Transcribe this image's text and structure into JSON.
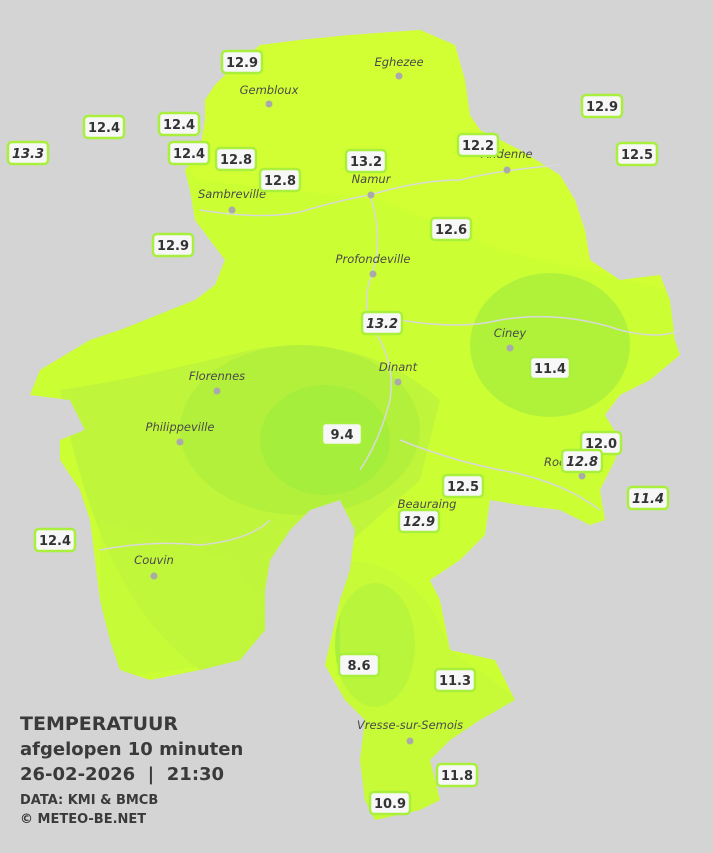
{
  "legend": {
    "title": "TEMPERATUUR",
    "subtitle": "afgelopen 10 minuten",
    "datetime": "26-02-2026  |  21:30",
    "source": "DATA: KMI & BMCB",
    "copyright": "© METEO-BE.NET"
  },
  "cities": [
    "Eghezee",
    "Gembloux",
    "Andenne",
    "Namur",
    "Sambreville",
    "Profondeville",
    "Ciney",
    "Dinant",
    "Florennes",
    "Philippeville",
    "Rochefort",
    "Beauraing",
    "Couvin",
    "Vresse-sur-Semois"
  ],
  "stations": [
    {
      "value": "12.9",
      "style": "normal"
    },
    {
      "value": "12.4",
      "style": "normal"
    },
    {
      "value": "12.4",
      "style": "normal"
    },
    {
      "value": "13.3",
      "style": "italic"
    },
    {
      "value": "12.4",
      "style": "normal"
    },
    {
      "value": "12.8",
      "style": "normal"
    },
    {
      "value": "12.8",
      "style": "normal"
    },
    {
      "value": "13.2",
      "style": "normal"
    },
    {
      "value": "12.2",
      "style": "normal"
    },
    {
      "value": "12.9",
      "style": "normal"
    },
    {
      "value": "12.5",
      "style": "normal"
    },
    {
      "value": "12.9",
      "style": "normal"
    },
    {
      "value": "12.6",
      "style": "normal"
    },
    {
      "value": "13.2",
      "style": "italic"
    },
    {
      "value": "11.4",
      "style": "normal"
    },
    {
      "value": "9.4",
      "style": "normal"
    },
    {
      "value": "12.0",
      "style": "normal"
    },
    {
      "value": "12.8",
      "style": "italic"
    },
    {
      "value": "12.5",
      "style": "normal"
    },
    {
      "value": "12.9",
      "style": "italic"
    },
    {
      "value": "11.4",
      "style": "italic"
    },
    {
      "value": "12.4",
      "style": "normal"
    },
    {
      "value": "8.6",
      "style": "normal"
    },
    {
      "value": "11.3",
      "style": "normal"
    },
    {
      "value": "11.8",
      "style": "normal"
    },
    {
      "value": "10.9",
      "style": "normal"
    }
  ]
}
